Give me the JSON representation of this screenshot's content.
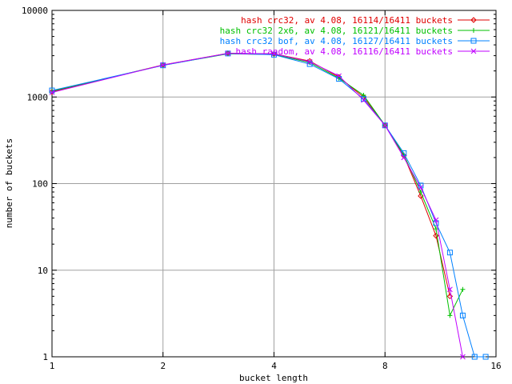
{
  "chart_data": {
    "type": "line",
    "title": "",
    "xlabel": "bucket length",
    "ylabel": "number of buckets",
    "x_scale": "log2",
    "y_scale": "log10",
    "xlim": [
      1,
      16
    ],
    "ylim": [
      1,
      10000
    ],
    "x_ticks": [
      {
        "value": 1,
        "label": "1"
      },
      {
        "value": 2,
        "label": "2"
      },
      {
        "value": 4,
        "label": "4"
      },
      {
        "value": 8,
        "label": "8"
      },
      {
        "value": 16,
        "label": "16"
      }
    ],
    "y_ticks": [
      {
        "value": 1,
        "label": "1"
      },
      {
        "value": 10,
        "label": "10"
      },
      {
        "value": 100,
        "label": "100"
      },
      {
        "value": 1000,
        "label": "1000"
      },
      {
        "value": 10000,
        "label": "10000"
      }
    ],
    "grid": true,
    "legend_position": "top-right",
    "series": [
      {
        "name": "hash crc32, av 4.08, 16114/16411 buckets",
        "color": "#e00000",
        "marker": "diamond",
        "points": [
          [
            1,
            1150
          ],
          [
            2,
            2350
          ],
          [
            3,
            3200
          ],
          [
            4,
            3150
          ],
          [
            5,
            2600
          ],
          [
            6,
            1700
          ],
          [
            7,
            1000
          ],
          [
            8,
            470
          ],
          [
            9,
            210
          ],
          [
            10,
            72
          ],
          [
            11,
            25
          ],
          [
            12,
            5
          ]
        ]
      },
      {
        "name": "hash crc32 2x6, av 4.08, 16121/16411 buckets",
        "color": "#00c000",
        "marker": "plus",
        "points": [
          [
            1,
            1170
          ],
          [
            2,
            2330
          ],
          [
            3,
            3150
          ],
          [
            4,
            3100
          ],
          [
            5,
            2500
          ],
          [
            6,
            1650
          ],
          [
            7,
            1050
          ],
          [
            8,
            470
          ],
          [
            9,
            215
          ],
          [
            10,
            80
          ],
          [
            11,
            30
          ],
          [
            12,
            3
          ],
          [
            13,
            6
          ]
        ]
      },
      {
        "name": "hash crc32 bof, av 4.08, 16127/16411 buckets",
        "color": "#0080ff",
        "marker": "square",
        "points": [
          [
            1,
            1190
          ],
          [
            2,
            2320
          ],
          [
            3,
            3180
          ],
          [
            4,
            3080
          ],
          [
            5,
            2400
          ],
          [
            6,
            1620
          ],
          [
            7,
            950
          ],
          [
            8,
            470
          ],
          [
            9,
            225
          ],
          [
            10,
            95
          ],
          [
            11,
            35
          ],
          [
            12,
            16
          ],
          [
            13,
            3
          ],
          [
            14,
            1
          ],
          [
            15,
            1
          ]
        ]
      },
      {
        "name": "hash random, av 4.08, 16116/16411 buckets",
        "color": "#c000ff",
        "marker": "cross",
        "points": [
          [
            1,
            1130
          ],
          [
            2,
            2340
          ],
          [
            3,
            3200
          ],
          [
            4,
            3150
          ],
          [
            5,
            2550
          ],
          [
            6,
            1750
          ],
          [
            7,
            920
          ],
          [
            8,
            470
          ],
          [
            9,
            200
          ],
          [
            10,
            90
          ],
          [
            11,
            38
          ],
          [
            12,
            6
          ],
          [
            13,
            1
          ]
        ]
      }
    ]
  }
}
